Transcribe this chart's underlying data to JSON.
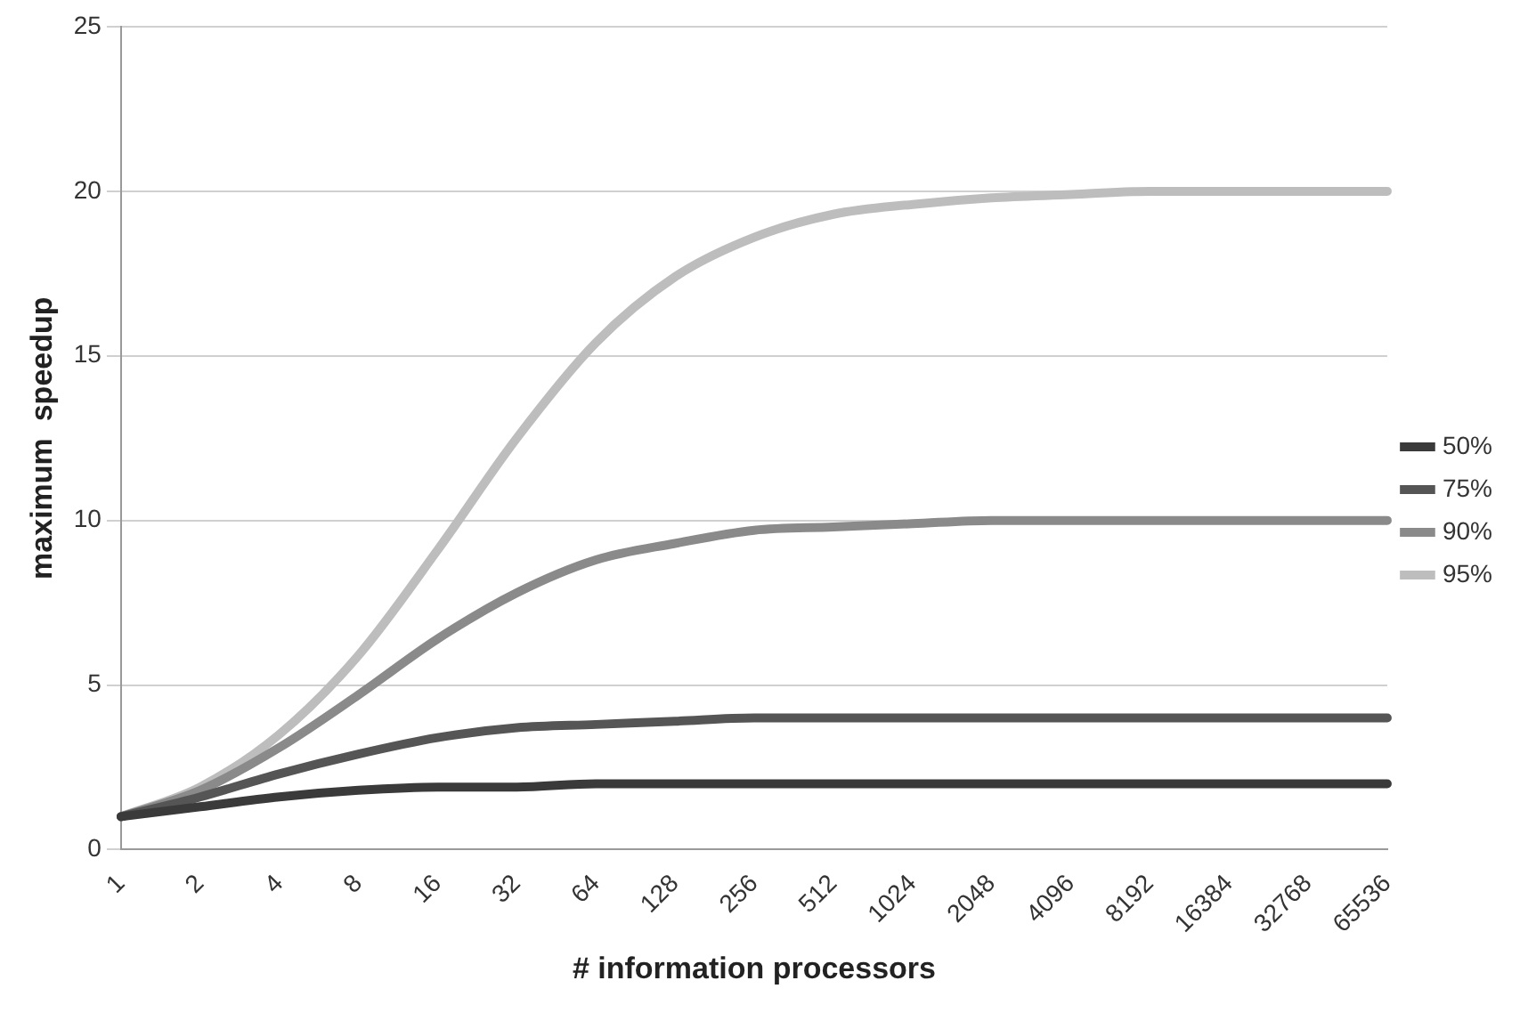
{
  "chart_data": {
    "type": "line",
    "xlabel": "# information processors",
    "ylabel": "maximum  speedup",
    "categories": [
      "1",
      "2",
      "4",
      "8",
      "16",
      "32",
      "64",
      "128",
      "256",
      "512",
      "1024",
      "2048",
      "4096",
      "8192",
      "16384",
      "32768",
      "65536"
    ],
    "series": [
      {
        "name": "50%",
        "color": "#3a3a3a",
        "values": [
          1,
          1.3,
          1.6,
          1.8,
          1.9,
          1.9,
          2,
          2,
          2,
          2,
          2,
          2,
          2,
          2,
          2,
          2,
          2
        ]
      },
      {
        "name": "75%",
        "color": "#555555",
        "values": [
          1,
          1.6,
          2.3,
          2.9,
          3.4,
          3.7,
          3.8,
          3.9,
          4,
          4,
          4,
          4,
          4,
          4,
          4,
          4,
          4
        ]
      },
      {
        "name": "90%",
        "color": "#8a8a8a",
        "values": [
          1,
          1.8,
          3.1,
          4.7,
          6.4,
          7.8,
          8.8,
          9.3,
          9.7,
          9.8,
          9.9,
          10,
          10,
          10,
          10,
          10,
          10
        ]
      },
      {
        "name": "95%",
        "color": "#bdbdbd",
        "values": [
          1,
          1.9,
          3.5,
          5.9,
          9.1,
          12.5,
          15.4,
          17.4,
          18.6,
          19.3,
          19.6,
          19.8,
          19.9,
          20,
          20,
          20,
          20
        ]
      }
    ],
    "ylim": [
      0,
      25
    ],
    "yticks": [
      0,
      5,
      10,
      15,
      20,
      25
    ],
    "grid": "y",
    "legend": "right",
    "marker": "none",
    "line_style": "solid"
  }
}
